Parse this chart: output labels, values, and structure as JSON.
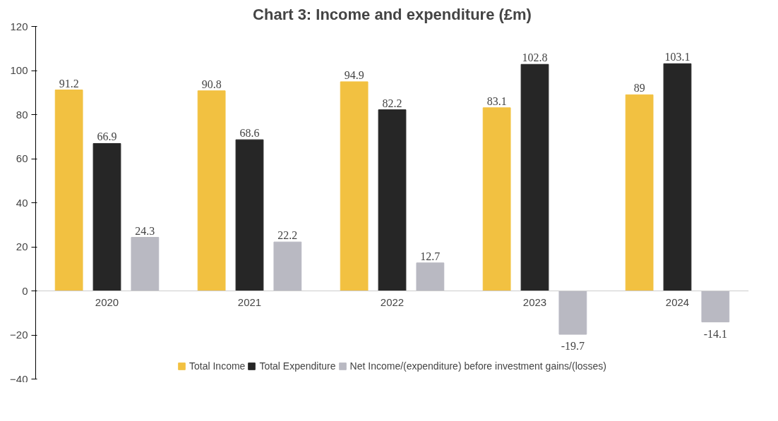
{
  "chart_data": {
    "type": "bar",
    "title": "Chart 3: Income and expenditure (£m)",
    "categories": [
      "2020",
      "2021",
      "2022",
      "2023",
      "2024"
    ],
    "series": [
      {
        "name": "Total Income",
        "color": "#f2c141",
        "values": [
          91.2,
          90.8,
          94.9,
          83.1,
          89
        ]
      },
      {
        "name": "Total Expenditure",
        "color": "#262626",
        "values": [
          66.9,
          68.6,
          82.2,
          102.8,
          103.1
        ]
      },
      {
        "name": "Net Income/(expenditure) before investment gains/(losses)",
        "color": "#b9b9c2",
        "values": [
          24.3,
          22.2,
          12.7,
          -19.7,
          -14.1
        ]
      }
    ],
    "ylim": [
      -40,
      120
    ],
    "yticks": [
      -40,
      -20,
      0,
      20,
      40,
      60,
      80,
      100,
      120
    ],
    "grid": false,
    "legend": "bottom",
    "data_labels": true
  }
}
